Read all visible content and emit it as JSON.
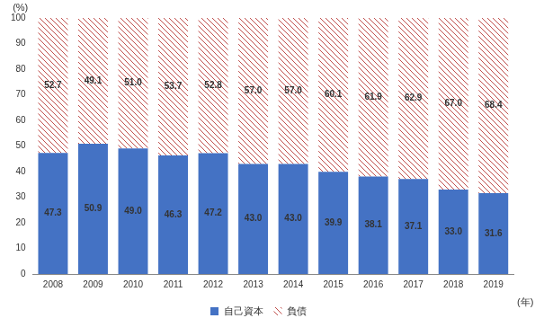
{
  "chart_data": {
    "type": "bar",
    "categories": [
      "2008",
      "2009",
      "2010",
      "2011",
      "2012",
      "2013",
      "2014",
      "2015",
      "2016",
      "2017",
      "2018",
      "2019"
    ],
    "series": [
      {
        "name": "自己資本",
        "color": "#4472c4",
        "values": [
          47.3,
          50.9,
          49.0,
          46.3,
          47.2,
          43.0,
          43.0,
          39.9,
          38.1,
          37.1,
          33.0,
          31.6
        ],
        "value_labels": [
          "47.3",
          "50.9",
          "49.0",
          "46.3",
          "47.2",
          "43.0",
          "43.0",
          "39.9",
          "38.1",
          "37.1",
          "33.0",
          "31.6"
        ]
      },
      {
        "name": "負債",
        "color": "#c0504d",
        "values": [
          52.7,
          49.1,
          51.0,
          53.7,
          52.8,
          57.0,
          57.0,
          60.1,
          61.9,
          62.9,
          67.0,
          68.4
        ],
        "value_labels": [
          "52.7",
          "49.1",
          "51.0",
          "53.7",
          "52.8",
          "57.0",
          "57.0",
          "60.1",
          "61.9",
          "62.9",
          "67.0",
          "68.4"
        ]
      }
    ],
    "x_label": "(年)",
    "y_label": "(%)",
    "ylim": [
      0,
      100
    ],
    "yticks": [
      0,
      10,
      20,
      30,
      40,
      50,
      60,
      70,
      80,
      90,
      100
    ],
    "stacked": true,
    "data_labels": true,
    "grid": false,
    "legend": "bottom"
  }
}
